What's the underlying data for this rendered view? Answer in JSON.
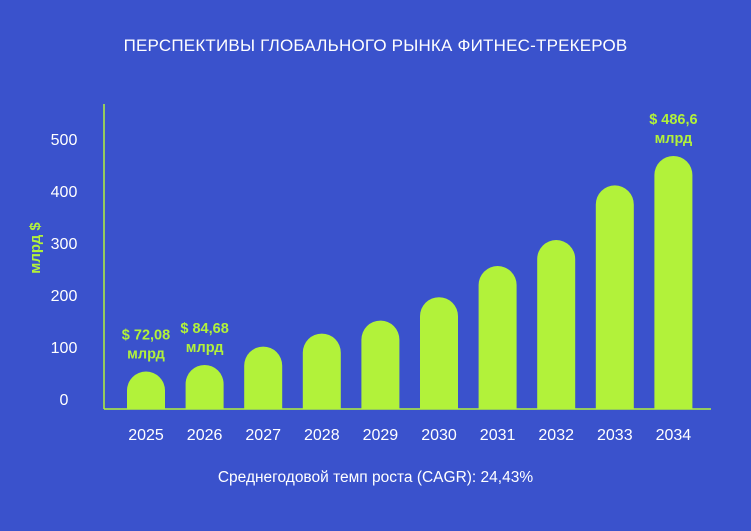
{
  "chart_data": {
    "type": "bar",
    "title": "ПЕРСПЕКТИВЫ ГЛОБАЛЬНОГО РЫНКА ФИТНЕС-ТРЕКЕРОВ",
    "xlabel": "",
    "ylabel": "млрд $",
    "footnote": "Среднегодовой темп роста (CAGR): 24,43%",
    "categories": [
      "2025",
      "2026",
      "2027",
      "2028",
      "2029",
      "2030",
      "2031",
      "2032",
      "2033",
      "2034"
    ],
    "values": [
      72.08,
      84.68,
      120,
      145,
      170,
      215,
      275,
      325,
      430,
      486.6
    ],
    "yticks": [
      0,
      100,
      200,
      300,
      400,
      500
    ],
    "ylim": [
      0,
      560
    ],
    "grid": false,
    "annotations": [
      {
        "index": 0,
        "line1": "$ 72,08",
        "line2": "млрд"
      },
      {
        "index": 1,
        "line1": "$ 84,68",
        "line2": "млрд"
      },
      {
        "index": 9,
        "line1": "$ 486,6",
        "line2": "млрд"
      }
    ],
    "colors": {
      "background": "#3a52cc",
      "bar": "#b2f23a",
      "label": "#b2f23a",
      "text": "#ffffff"
    }
  }
}
